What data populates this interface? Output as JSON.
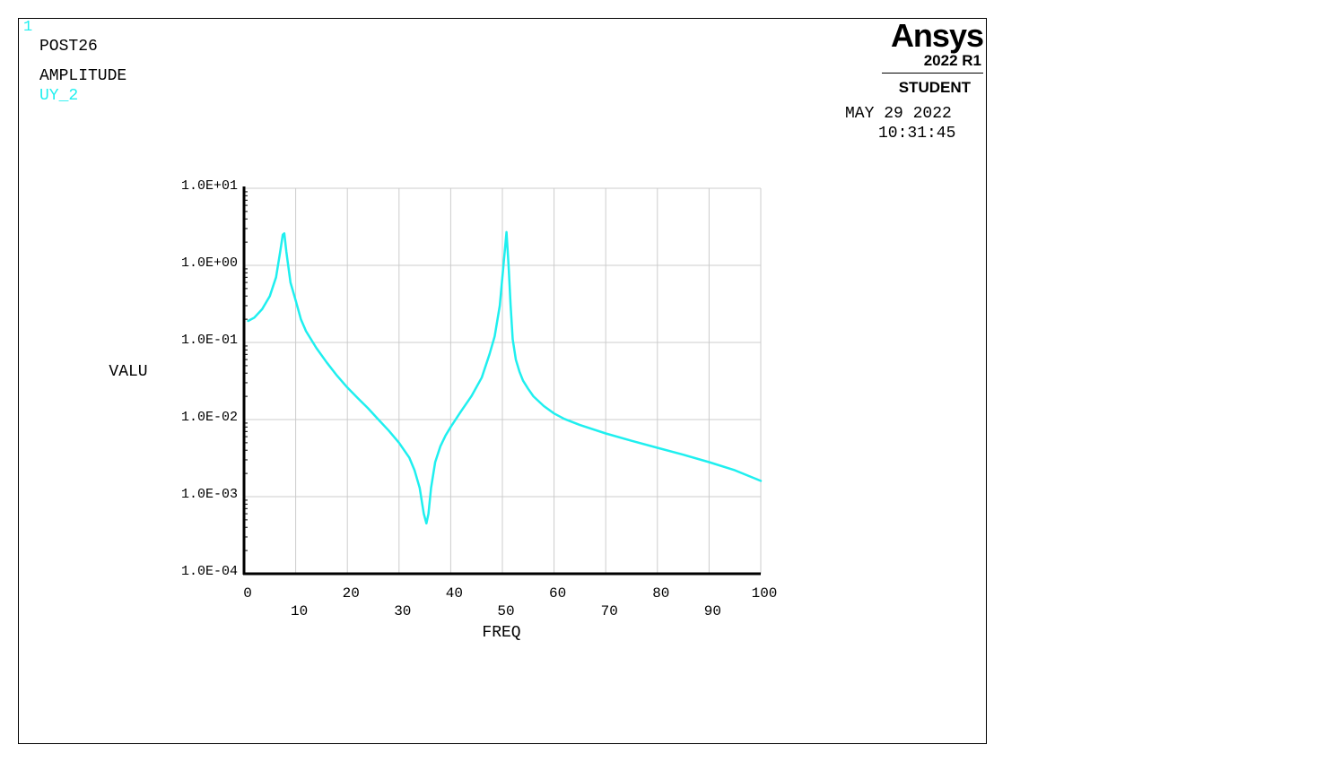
{
  "header": {
    "window_number": "1",
    "processor": "POST26",
    "plot_title": "AMPLITUDE",
    "series_label": "UY_2",
    "date": "MAY 29 2022",
    "time": "10:31:45"
  },
  "logo": {
    "brand": "Ansys",
    "version": "2022 R1",
    "edition": "STUDENT"
  },
  "colors": {
    "series": "#1fefef",
    "axis": "#000000",
    "grid": "#cccccc",
    "window_number": "#1fefef",
    "series_label": "#1fefef"
  },
  "chart_data": {
    "type": "line",
    "xlabel": "FREQ",
    "ylabel": "VALU",
    "xlim": [
      0,
      100
    ],
    "ylim": [
      0.0001,
      10
    ],
    "y_scale": "log",
    "grid": true,
    "x_ticks": [
      "0",
      "10",
      "20",
      "30",
      "40",
      "50",
      "60",
      "70",
      "80",
      "90",
      "100"
    ],
    "y_ticks": [
      "1.0E-04",
      "1.0E-03",
      "1.0E-02",
      "1.0E-01",
      "1.0E+00",
      "1.0E+01"
    ],
    "series": [
      {
        "name": "UY_2",
        "x": [
          0.8,
          2,
          3.5,
          5,
          6.2,
          7,
          7.5,
          7.8,
          8.2,
          9,
          10,
          11,
          12,
          14,
          16,
          18,
          20,
          22,
          24,
          26,
          28,
          30,
          32,
          33,
          34,
          34.8,
          35.3,
          35.7,
          36.2,
          37,
          38,
          39,
          40,
          42,
          44,
          46,
          47.5,
          48.5,
          49.5,
          50.2,
          50.8,
          51.2,
          51.6,
          52,
          52.6,
          53.3,
          54,
          55,
          56,
          58,
          60,
          62,
          65,
          70,
          75,
          80,
          85,
          90,
          95,
          100
        ],
        "y": [
          0.19,
          0.21,
          0.27,
          0.4,
          0.7,
          1.5,
          2.5,
          2.6,
          1.5,
          0.6,
          0.35,
          0.2,
          0.14,
          0.085,
          0.055,
          0.037,
          0.026,
          0.019,
          0.014,
          0.01,
          0.0072,
          0.005,
          0.0032,
          0.0022,
          0.0013,
          0.0006,
          0.00045,
          0.0006,
          0.0013,
          0.0028,
          0.0045,
          0.0062,
          0.008,
          0.0128,
          0.02,
          0.035,
          0.07,
          0.12,
          0.3,
          1.0,
          2.7,
          1.0,
          0.3,
          0.11,
          0.06,
          0.042,
          0.032,
          0.025,
          0.02,
          0.015,
          0.012,
          0.0102,
          0.0085,
          0.0066,
          0.0053,
          0.0043,
          0.0035,
          0.0028,
          0.0022,
          0.0016
        ]
      }
    ]
  }
}
